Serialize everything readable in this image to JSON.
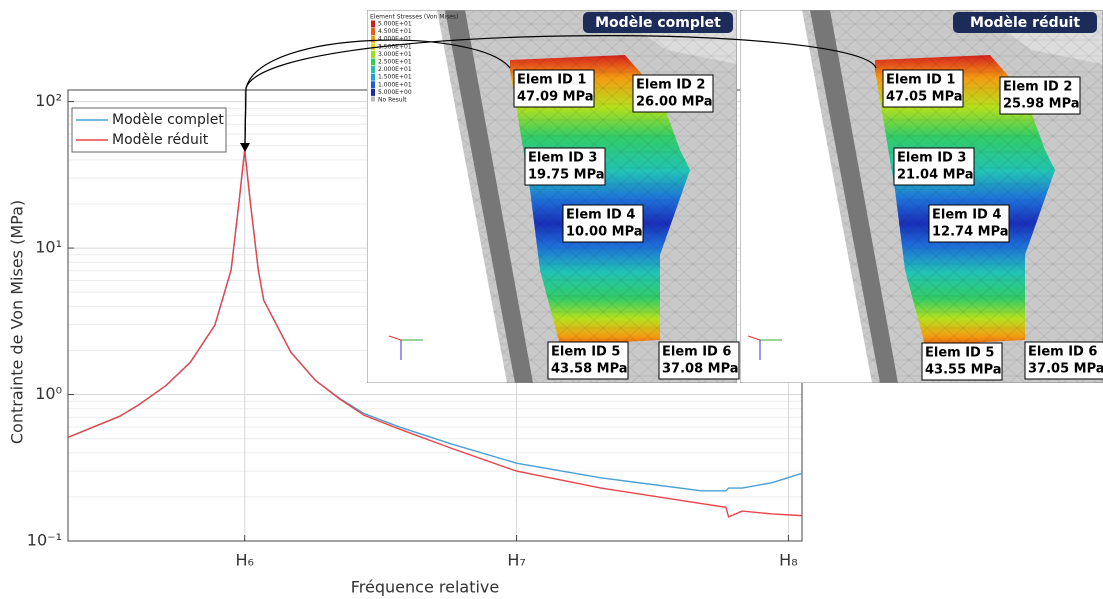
{
  "chart_data": {
    "type": "line",
    "y_label": "Contrainte de Von Mises (MPa)",
    "x_label": "Fréquence relative",
    "log_y": true,
    "grid": true,
    "minor_grid": true,
    "legend": "upper left",
    "xlim": [
      5.35,
      8.05
    ],
    "ylim": [
      0.1,
      120
    ],
    "xticks": [
      {
        "value": 6,
        "label": "H₆"
      },
      {
        "value": 7,
        "label": "H₇"
      },
      {
        "value": 8,
        "label": "H₈"
      }
    ],
    "yticks": [
      {
        "value": 0.1,
        "label": "10⁻¹"
      },
      {
        "value": 1,
        "label": "10⁰"
      },
      {
        "value": 10,
        "label": "10¹"
      },
      {
        "value": 100,
        "label": "10²"
      }
    ],
    "x": [
      5.35,
      5.54,
      5.61,
      5.71,
      5.8,
      5.89,
      5.95,
      5.98,
      6.0,
      6.02,
      6.05,
      6.07,
      6.17,
      6.26,
      6.35,
      6.44,
      6.57,
      6.76,
      7.0,
      7.31,
      7.68,
      7.77,
      7.78,
      7.83,
      7.94,
      8.05
    ],
    "series": [
      {
        "name": "Modèle complet",
        "color": "#4a9fd4",
        "values": [
          0.51,
          0.71,
          0.85,
          1.15,
          1.66,
          2.97,
          7.07,
          21.3,
          47,
          21,
          7.1,
          4.4,
          1.94,
          1.25,
          0.94,
          0.74,
          0.6,
          0.46,
          0.34,
          0.27,
          0.22,
          0.22,
          0.23,
          0.23,
          0.25,
          0.29
        ]
      },
      {
        "name": "Modèle réduit",
        "color": "#e8454a",
        "values": [
          0.51,
          0.71,
          0.85,
          1.15,
          1.66,
          2.97,
          7.07,
          21.3,
          47,
          21,
          7.1,
          4.4,
          1.94,
          1.25,
          0.93,
          0.72,
          0.58,
          0.43,
          0.3,
          0.23,
          0.18,
          0.17,
          0.146,
          0.16,
          0.153,
          0.149
        ]
      }
    ]
  },
  "colorbar": {
    "title": "Element Stresses (Von Mises)",
    "labels": [
      "5.000E+01",
      "4.500E+01",
      "4.000E+01",
      "3.500E+01",
      "3.000E+01",
      "2.500E+01",
      "2.000E+01",
      "1.500E+01",
      "1.000E+01",
      "5.000E+00"
    ],
    "colors": [
      "#d41c1c",
      "#ef5a10",
      "#f39c12",
      "#e5d51a",
      "#9be01e",
      "#33cc55",
      "#22c3a5",
      "#1fa0d8",
      "#1e5ad9",
      "#1a2aa8"
    ],
    "no_result": "No Result"
  },
  "panels": [
    {
      "title": "Modèle complet",
      "elements": [
        {
          "id": "Elem ID 1",
          "stress": "47.09 MPa"
        },
        {
          "id": "Elem ID 2",
          "stress": "26.00 MPa"
        },
        {
          "id": "Elem ID 3",
          "stress": "19.75 MPa"
        },
        {
          "id": "Elem ID 4",
          "stress": "10.00 MPa"
        },
        {
          "id": "Elem ID 5",
          "stress": "43.58 MPa"
        },
        {
          "id": "Elem ID 6",
          "stress": "37.08 MPa"
        }
      ]
    },
    {
      "title": "Modèle réduit",
      "elements": [
        {
          "id": "Elem ID 1",
          "stress": "47.05 MPa"
        },
        {
          "id": "Elem ID 2",
          "stress": "25.98 MPa"
        },
        {
          "id": "Elem ID 3",
          "stress": "21.04 MPa"
        },
        {
          "id": "Elem ID 4",
          "stress": "12.74 MPa"
        },
        {
          "id": "Elem ID 5",
          "stress": "43.55 MPa"
        },
        {
          "id": "Elem ID 6",
          "stress": "37.05 MPa"
        }
      ]
    }
  ]
}
